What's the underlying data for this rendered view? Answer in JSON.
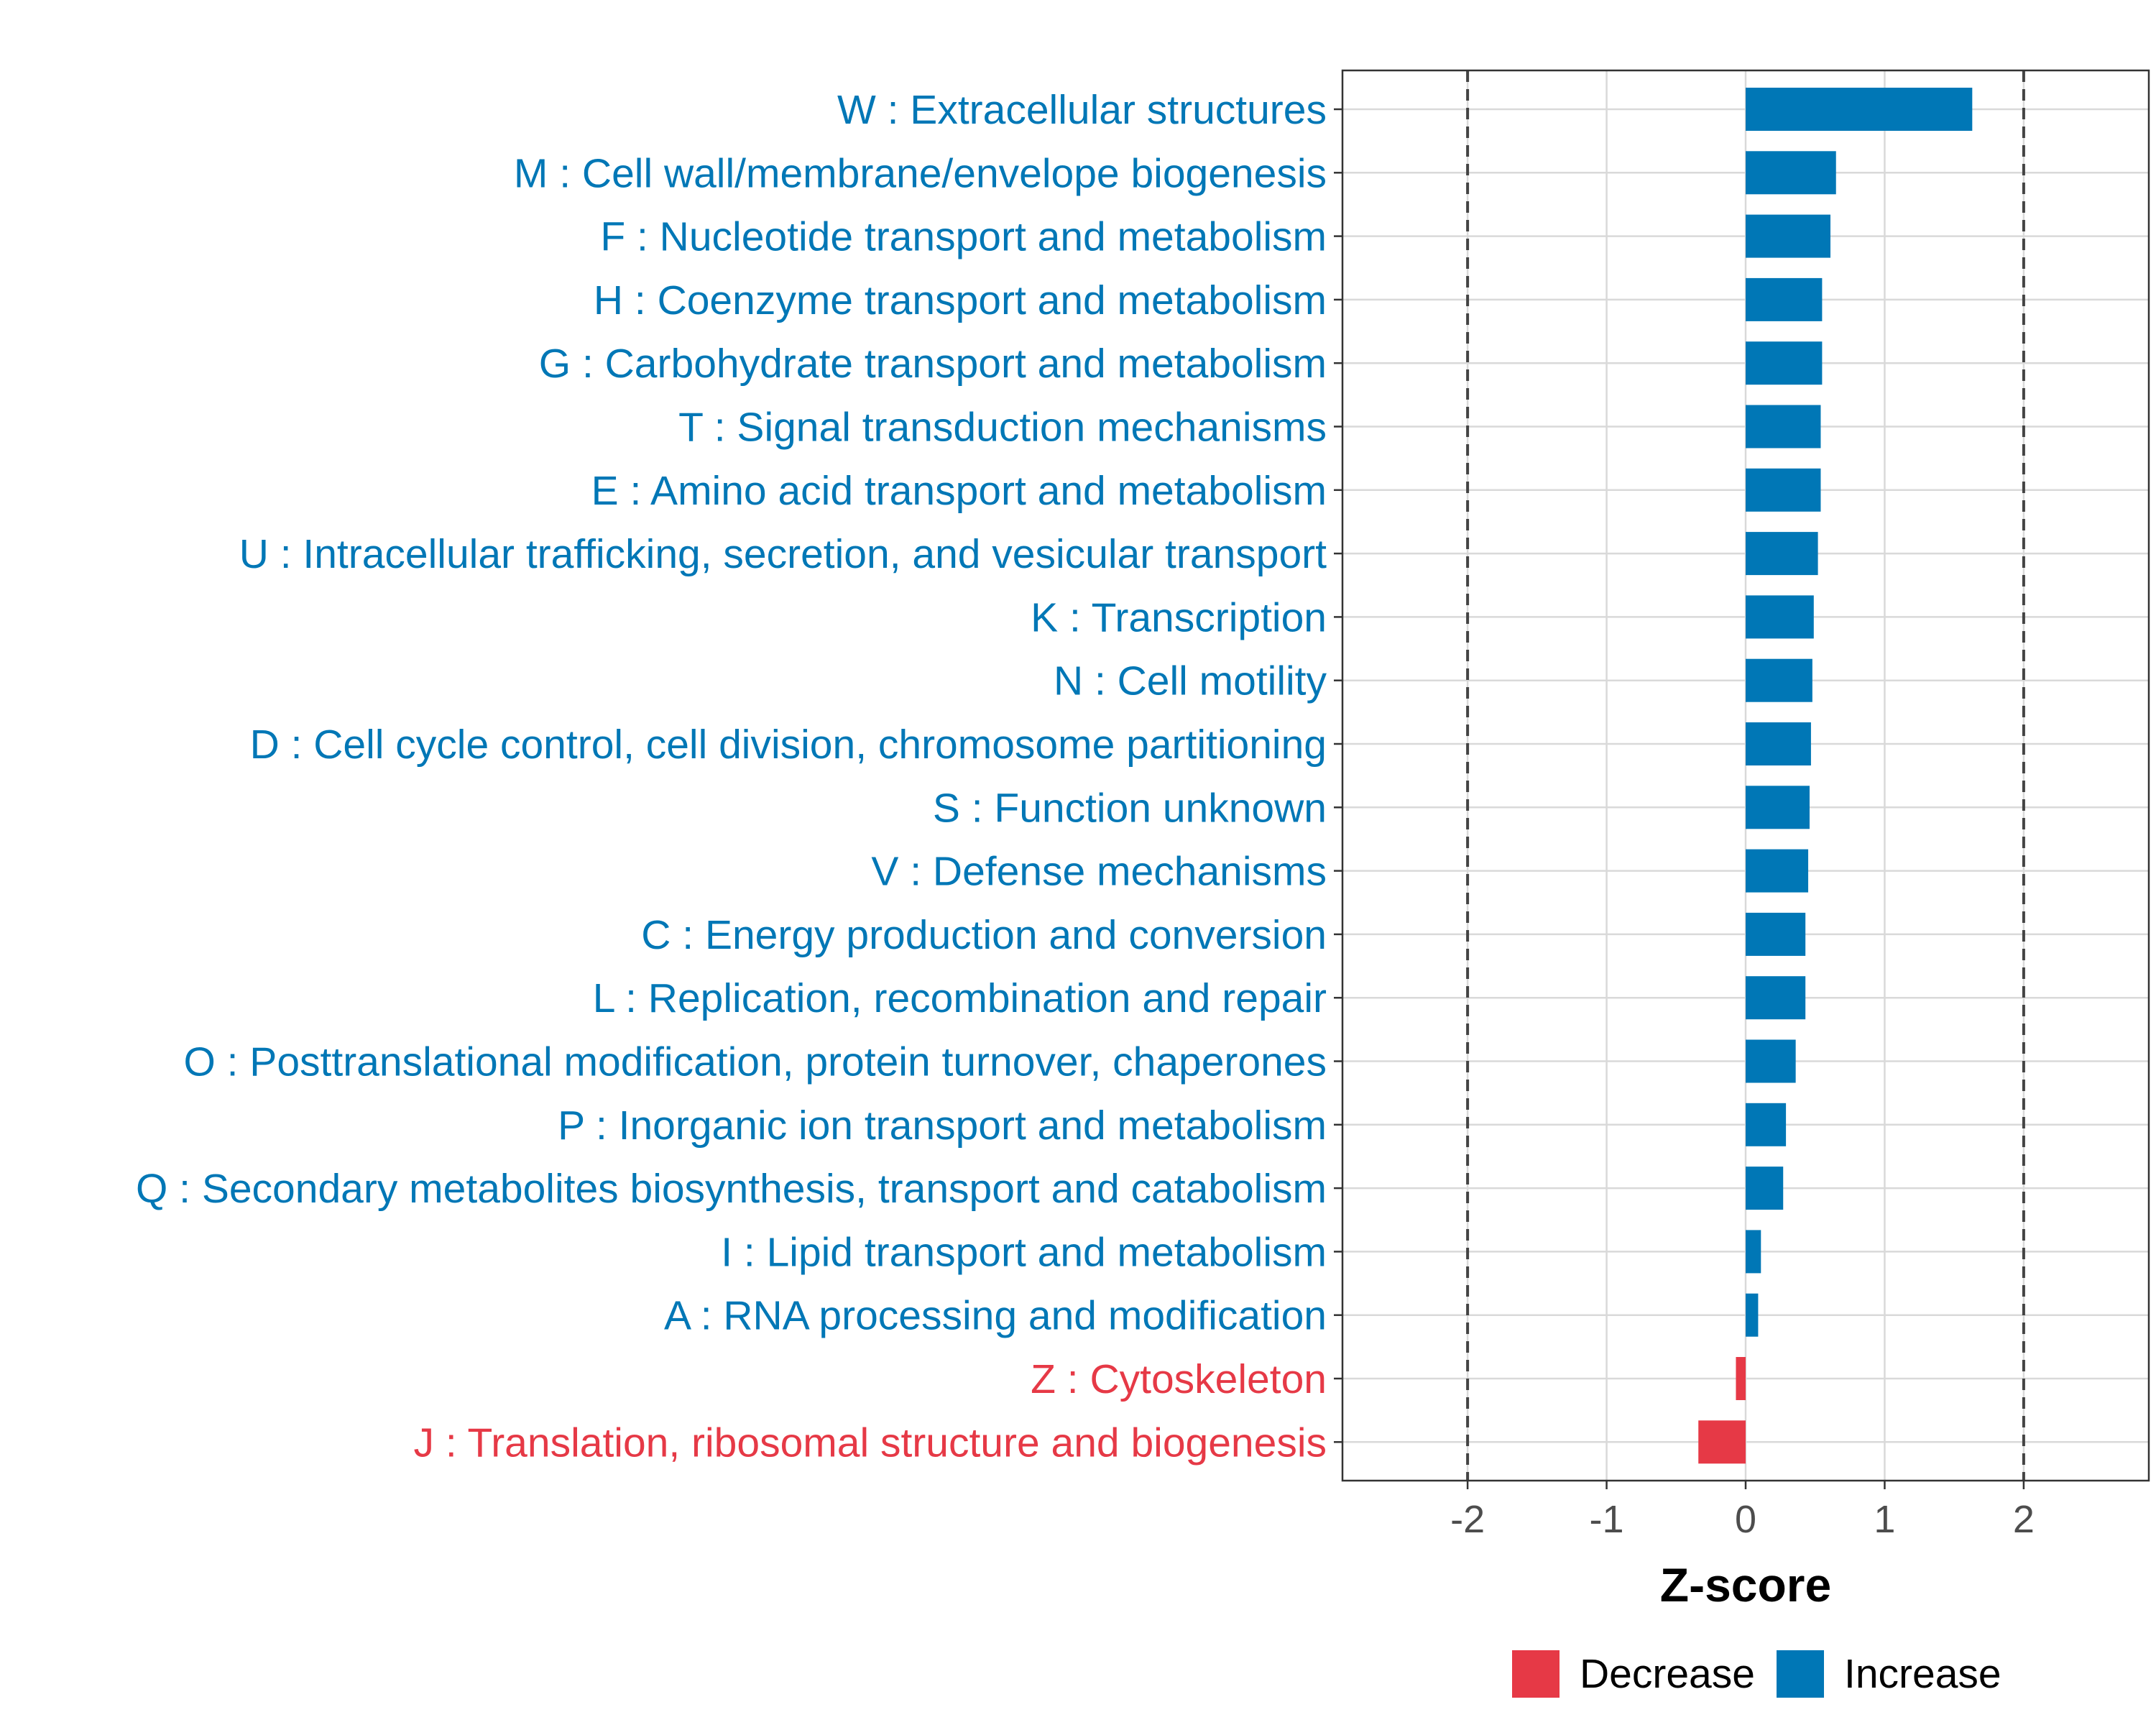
{
  "chart_data": {
    "type": "bar",
    "orientation": "horizontal",
    "title": "",
    "xlabel": "Z-score",
    "ylabel": "",
    "xlim": [
      -2.9,
      2.9
    ],
    "x_ticks": [
      "-2",
      "-1",
      "0",
      "1",
      "2"
    ],
    "reference_lines": [
      -2,
      2
    ],
    "grid": true,
    "legend_position": "bottom",
    "colors": {
      "Decrease": "#e63946",
      "Increase": "#0077b6"
    },
    "legend": [
      {
        "name": "Decrease",
        "color": "#e63946"
      },
      {
        "name": "Increase",
        "color": "#0077b6"
      }
    ],
    "categories": [
      "W : Extracellular structures",
      "M : Cell wall/membrane/envelope biogenesis",
      "F : Nucleotide transport and metabolism",
      "H : Coenzyme transport and metabolism",
      "G : Carbohydrate transport and metabolism",
      "T : Signal transduction mechanisms",
      "E : Amino acid transport and metabolism",
      "U : Intracellular trafficking, secretion, and vesicular transport",
      "K : Transcription",
      "N : Cell motility",
      "D : Cell cycle control, cell division, chromosome partitioning",
      "S : Function unknown",
      "V : Defense mechanisms",
      "C : Energy production and conversion",
      "L : Replication, recombination and repair",
      "O : Posttranslational modification, protein turnover, chaperones",
      "P : Inorganic ion transport and metabolism",
      "Q : Secondary metabolites biosynthesis, transport and catabolism",
      "I : Lipid transport and metabolism",
      "A : RNA processing and modification",
      "Z : Cytoskeleton",
      "J : Translation, ribosomal structure and biogenesis"
    ],
    "values": [
      1.63,
      0.65,
      0.61,
      0.55,
      0.55,
      0.54,
      0.54,
      0.52,
      0.49,
      0.48,
      0.47,
      0.46,
      0.45,
      0.43,
      0.43,
      0.36,
      0.29,
      0.27,
      0.11,
      0.09,
      -0.07,
      -0.34
    ],
    "groups": [
      "Increase",
      "Increase",
      "Increase",
      "Increase",
      "Increase",
      "Increase",
      "Increase",
      "Increase",
      "Increase",
      "Increase",
      "Increase",
      "Increase",
      "Increase",
      "Increase",
      "Increase",
      "Increase",
      "Increase",
      "Increase",
      "Increase",
      "Increase",
      "Decrease",
      "Decrease"
    ]
  }
}
